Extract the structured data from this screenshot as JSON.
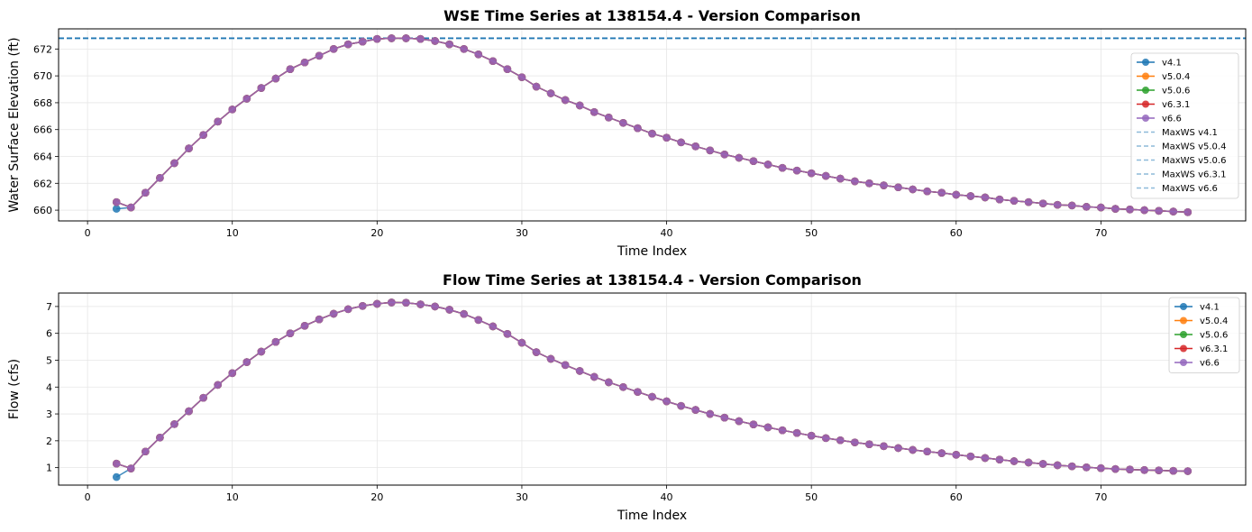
{
  "chart_data": [
    {
      "type": "line",
      "title": "WSE Time Series at 138154.4 - Version Comparison",
      "xlabel": "Time Index",
      "ylabel": "Water Surface Elevation (ft)",
      "xlim": [
        -2,
        80
      ],
      "ylim": [
        659.2,
        673.5
      ],
      "xticks": [
        0,
        10,
        20,
        30,
        40,
        50,
        60,
        70
      ],
      "yticks": [
        660,
        662,
        664,
        666,
        668,
        670,
        672
      ],
      "grid": true,
      "legend_position": "right",
      "x": [
        2,
        3,
        4,
        5,
        6,
        7,
        8,
        9,
        10,
        11,
        12,
        13,
        14,
        15,
        16,
        17,
        18,
        19,
        20,
        21,
        22,
        23,
        24,
        25,
        26,
        27,
        28,
        29,
        30,
        31,
        32,
        33,
        34,
        35,
        36,
        37,
        38,
        39,
        40,
        41,
        42,
        43,
        44,
        45,
        46,
        47,
        48,
        49,
        50,
        51,
        52,
        53,
        54,
        55,
        56,
        57,
        58,
        59,
        60,
        61,
        62,
        63,
        64,
        65,
        66,
        67,
        68,
        69,
        70,
        71,
        72,
        73,
        74,
        75,
        76
      ],
      "series": [
        {
          "name": "v4.1",
          "color": "#1f77b4",
          "values": [
            660.1,
            660.2,
            661.3,
            662.4,
            663.5,
            664.6,
            665.6,
            666.6,
            667.5,
            668.3,
            669.1,
            669.8,
            670.5,
            671.0,
            671.5,
            672.0,
            672.35,
            672.55,
            672.75,
            672.8,
            672.8,
            672.75,
            672.6,
            672.35,
            672.0,
            671.6,
            671.1,
            670.5,
            669.9,
            669.2,
            668.7,
            668.2,
            667.8,
            667.3,
            666.9,
            666.5,
            666.1,
            665.7,
            665.4,
            665.05,
            664.75,
            664.45,
            664.15,
            663.9,
            663.65,
            663.4,
            663.15,
            662.95,
            662.75,
            662.55,
            662.35,
            662.15,
            662.0,
            661.85,
            661.7,
            661.55,
            661.4,
            661.3,
            661.15,
            661.05,
            660.95,
            660.8,
            660.7,
            660.6,
            660.5,
            660.4,
            660.35,
            660.25,
            660.2,
            660.1,
            660.05,
            660.0,
            659.95,
            659.9,
            659.85
          ]
        },
        {
          "name": "v5.0.4",
          "color": "#ff7f0e",
          "values": [
            660.6,
            660.2,
            661.3,
            662.4,
            663.5,
            664.6,
            665.6,
            666.6,
            667.5,
            668.3,
            669.1,
            669.8,
            670.5,
            671.0,
            671.5,
            672.0,
            672.35,
            672.55,
            672.75,
            672.8,
            672.8,
            672.75,
            672.6,
            672.35,
            672.0,
            671.6,
            671.1,
            670.5,
            669.9,
            669.2,
            668.7,
            668.2,
            667.8,
            667.3,
            666.9,
            666.5,
            666.1,
            665.7,
            665.4,
            665.05,
            664.75,
            664.45,
            664.15,
            663.9,
            663.65,
            663.4,
            663.15,
            662.95,
            662.75,
            662.55,
            662.35,
            662.15,
            662.0,
            661.85,
            661.7,
            661.55,
            661.4,
            661.3,
            661.15,
            661.05,
            660.95,
            660.8,
            660.7,
            660.6,
            660.5,
            660.4,
            660.35,
            660.25,
            660.2,
            660.1,
            660.05,
            660.0,
            659.95,
            659.9,
            659.85
          ]
        },
        {
          "name": "v5.0.6",
          "color": "#2ca02c",
          "values": [
            660.6,
            660.2,
            661.3,
            662.4,
            663.5,
            664.6,
            665.6,
            666.6,
            667.5,
            668.3,
            669.1,
            669.8,
            670.5,
            671.0,
            671.5,
            672.0,
            672.35,
            672.55,
            672.75,
            672.8,
            672.8,
            672.75,
            672.6,
            672.35,
            672.0,
            671.6,
            671.1,
            670.5,
            669.9,
            669.2,
            668.7,
            668.2,
            667.8,
            667.3,
            666.9,
            666.5,
            666.1,
            665.7,
            665.4,
            665.05,
            664.75,
            664.45,
            664.15,
            663.9,
            663.65,
            663.4,
            663.15,
            662.95,
            662.75,
            662.55,
            662.35,
            662.15,
            662.0,
            661.85,
            661.7,
            661.55,
            661.4,
            661.3,
            661.15,
            661.05,
            660.95,
            660.8,
            660.7,
            660.6,
            660.5,
            660.4,
            660.35,
            660.25,
            660.2,
            660.1,
            660.05,
            660.0,
            659.95,
            659.9,
            659.85
          ]
        },
        {
          "name": "v6.3.1",
          "color": "#d62728",
          "values": [
            660.6,
            660.2,
            661.3,
            662.4,
            663.5,
            664.6,
            665.6,
            666.6,
            667.5,
            668.3,
            669.1,
            669.8,
            670.5,
            671.0,
            671.5,
            672.0,
            672.35,
            672.55,
            672.75,
            672.8,
            672.8,
            672.75,
            672.6,
            672.35,
            672.0,
            671.6,
            671.1,
            670.5,
            669.9,
            669.2,
            668.7,
            668.2,
            667.8,
            667.3,
            666.9,
            666.5,
            666.1,
            665.7,
            665.4,
            665.05,
            664.75,
            664.45,
            664.15,
            663.9,
            663.65,
            663.4,
            663.15,
            662.95,
            662.75,
            662.55,
            662.35,
            662.15,
            662.0,
            661.85,
            661.7,
            661.55,
            661.4,
            661.3,
            661.15,
            661.05,
            660.95,
            660.8,
            660.7,
            660.6,
            660.5,
            660.4,
            660.35,
            660.25,
            660.2,
            660.1,
            660.05,
            660.0,
            659.95,
            659.9,
            659.85
          ]
        },
        {
          "name": "v6.6",
          "color": "#9467bd",
          "values": [
            660.6,
            660.2,
            661.3,
            662.4,
            663.5,
            664.6,
            665.6,
            666.6,
            667.5,
            668.3,
            669.1,
            669.8,
            670.5,
            671.0,
            671.5,
            672.0,
            672.35,
            672.55,
            672.75,
            672.8,
            672.8,
            672.75,
            672.6,
            672.35,
            672.0,
            671.6,
            671.1,
            670.5,
            669.9,
            669.2,
            668.7,
            668.2,
            667.8,
            667.3,
            666.9,
            666.5,
            666.1,
            665.7,
            665.4,
            665.05,
            664.75,
            664.45,
            664.15,
            663.9,
            663.65,
            663.4,
            663.15,
            662.95,
            662.75,
            662.55,
            662.35,
            662.15,
            662.0,
            661.85,
            661.7,
            661.55,
            661.4,
            661.3,
            661.15,
            661.05,
            660.95,
            660.8,
            660.7,
            660.6,
            660.5,
            660.4,
            660.35,
            660.25,
            660.2,
            660.1,
            660.05,
            660.0,
            659.95,
            659.9,
            659.85
          ]
        }
      ],
      "reference_lines": [
        {
          "name": "MaxWS v4.1",
          "y": 672.8,
          "color": "#1f77b4"
        },
        {
          "name": "MaxWS v5.0.4",
          "y": 672.8,
          "color": "#1f77b4"
        },
        {
          "name": "MaxWS v5.0.6",
          "y": 672.8,
          "color": "#1f77b4"
        },
        {
          "name": "MaxWS v6.3.1",
          "y": 672.8,
          "color": "#1f77b4"
        },
        {
          "name": "MaxWS v6.6",
          "y": 672.8,
          "color": "#1f77b4"
        }
      ]
    },
    {
      "type": "line",
      "title": "Flow Time Series at 138154.4 - Version Comparison",
      "xlabel": "Time Index",
      "ylabel": "Flow (cfs)",
      "xlim": [
        -2,
        80
      ],
      "ylim": [
        0.35,
        7.5
      ],
      "xticks": [
        0,
        10,
        20,
        30,
        40,
        50,
        60,
        70
      ],
      "yticks": [
        1,
        2,
        3,
        4,
        5,
        6,
        7
      ],
      "grid": true,
      "legend_position": "top-right",
      "x": [
        2,
        3,
        4,
        5,
        6,
        7,
        8,
        9,
        10,
        11,
        12,
        13,
        14,
        15,
        16,
        17,
        18,
        19,
        20,
        21,
        22,
        23,
        24,
        25,
        26,
        27,
        28,
        29,
        30,
        31,
        32,
        33,
        34,
        35,
        36,
        37,
        38,
        39,
        40,
        41,
        42,
        43,
        44,
        45,
        46,
        47,
        48,
        49,
        50,
        51,
        52,
        53,
        54,
        55,
        56,
        57,
        58,
        59,
        60,
        61,
        62,
        63,
        64,
        65,
        66,
        67,
        68,
        69,
        70,
        71,
        72,
        73,
        74,
        75,
        76
      ],
      "series": [
        {
          "name": "v4.1",
          "color": "#1f77b4",
          "values": [
            0.65,
            0.97,
            1.6,
            2.12,
            2.62,
            3.1,
            3.6,
            4.08,
            4.52,
            4.93,
            5.32,
            5.68,
            6.0,
            6.28,
            6.52,
            6.73,
            6.9,
            7.02,
            7.1,
            7.15,
            7.14,
            7.08,
            7.0,
            6.88,
            6.72,
            6.5,
            6.26,
            5.98,
            5.65,
            5.3,
            5.05,
            4.82,
            4.6,
            4.38,
            4.18,
            4.0,
            3.82,
            3.64,
            3.47,
            3.3,
            3.15,
            3.0,
            2.86,
            2.73,
            2.61,
            2.5,
            2.39,
            2.29,
            2.19,
            2.1,
            2.02,
            1.94,
            1.87,
            1.8,
            1.73,
            1.66,
            1.6,
            1.54,
            1.48,
            1.42,
            1.36,
            1.3,
            1.24,
            1.19,
            1.14,
            1.09,
            1.05,
            1.01,
            0.98,
            0.95,
            0.93,
            0.91,
            0.9,
            0.88,
            0.87
          ]
        },
        {
          "name": "v5.0.4",
          "color": "#ff7f0e",
          "values": [
            1.15,
            0.97,
            1.6,
            2.12,
            2.62,
            3.1,
            3.6,
            4.08,
            4.52,
            4.93,
            5.32,
            5.68,
            6.0,
            6.28,
            6.52,
            6.73,
            6.9,
            7.02,
            7.1,
            7.15,
            7.14,
            7.08,
            7.0,
            6.88,
            6.72,
            6.5,
            6.26,
            5.98,
            5.65,
            5.3,
            5.05,
            4.82,
            4.6,
            4.38,
            4.18,
            4.0,
            3.82,
            3.64,
            3.47,
            3.3,
            3.15,
            3.0,
            2.86,
            2.73,
            2.61,
            2.5,
            2.39,
            2.29,
            2.19,
            2.1,
            2.02,
            1.94,
            1.87,
            1.8,
            1.73,
            1.66,
            1.6,
            1.54,
            1.48,
            1.42,
            1.36,
            1.3,
            1.24,
            1.19,
            1.14,
            1.09,
            1.05,
            1.01,
            0.98,
            0.95,
            0.93,
            0.91,
            0.9,
            0.88,
            0.87
          ]
        },
        {
          "name": "v5.0.6",
          "color": "#2ca02c",
          "values": [
            1.15,
            0.97,
            1.6,
            2.12,
            2.62,
            3.1,
            3.6,
            4.08,
            4.52,
            4.93,
            5.32,
            5.68,
            6.0,
            6.28,
            6.52,
            6.73,
            6.9,
            7.02,
            7.1,
            7.15,
            7.14,
            7.08,
            7.0,
            6.88,
            6.72,
            6.5,
            6.26,
            5.98,
            5.65,
            5.3,
            5.05,
            4.82,
            4.6,
            4.38,
            4.18,
            4.0,
            3.82,
            3.64,
            3.47,
            3.3,
            3.15,
            3.0,
            2.86,
            2.73,
            2.61,
            2.5,
            2.39,
            2.29,
            2.19,
            2.1,
            2.02,
            1.94,
            1.87,
            1.8,
            1.73,
            1.66,
            1.6,
            1.54,
            1.48,
            1.42,
            1.36,
            1.3,
            1.24,
            1.19,
            1.14,
            1.09,
            1.05,
            1.01,
            0.98,
            0.95,
            0.93,
            0.91,
            0.9,
            0.88,
            0.87
          ]
        },
        {
          "name": "v6.3.1",
          "color": "#d62728",
          "values": [
            1.15,
            0.97,
            1.6,
            2.12,
            2.62,
            3.1,
            3.6,
            4.08,
            4.52,
            4.93,
            5.32,
            5.68,
            6.0,
            6.28,
            6.52,
            6.73,
            6.9,
            7.02,
            7.1,
            7.15,
            7.14,
            7.08,
            7.0,
            6.88,
            6.72,
            6.5,
            6.26,
            5.98,
            5.65,
            5.3,
            5.05,
            4.82,
            4.6,
            4.38,
            4.18,
            4.0,
            3.82,
            3.64,
            3.47,
            3.3,
            3.15,
            3.0,
            2.86,
            2.73,
            2.61,
            2.5,
            2.39,
            2.29,
            2.19,
            2.1,
            2.02,
            1.94,
            1.87,
            1.8,
            1.73,
            1.66,
            1.6,
            1.54,
            1.48,
            1.42,
            1.36,
            1.3,
            1.24,
            1.19,
            1.14,
            1.09,
            1.05,
            1.01,
            0.98,
            0.95,
            0.93,
            0.91,
            0.9,
            0.88,
            0.87
          ]
        },
        {
          "name": "v6.6",
          "color": "#9467bd",
          "values": [
            1.15,
            0.97,
            1.6,
            2.12,
            2.62,
            3.1,
            3.6,
            4.08,
            4.52,
            4.93,
            5.32,
            5.68,
            6.0,
            6.28,
            6.52,
            6.73,
            6.9,
            7.02,
            7.1,
            7.15,
            7.14,
            7.08,
            7.0,
            6.88,
            6.72,
            6.5,
            6.26,
            5.98,
            5.65,
            5.3,
            5.05,
            4.82,
            4.6,
            4.38,
            4.18,
            4.0,
            3.82,
            3.64,
            3.47,
            3.3,
            3.15,
            3.0,
            2.86,
            2.73,
            2.61,
            2.5,
            2.39,
            2.29,
            2.19,
            2.1,
            2.02,
            1.94,
            1.87,
            1.8,
            1.73,
            1.66,
            1.6,
            1.54,
            1.48,
            1.42,
            1.36,
            1.3,
            1.24,
            1.19,
            1.14,
            1.09,
            1.05,
            1.01,
            0.98,
            0.95,
            0.93,
            0.91,
            0.9,
            0.88,
            0.87
          ]
        }
      ],
      "reference_lines": []
    }
  ]
}
